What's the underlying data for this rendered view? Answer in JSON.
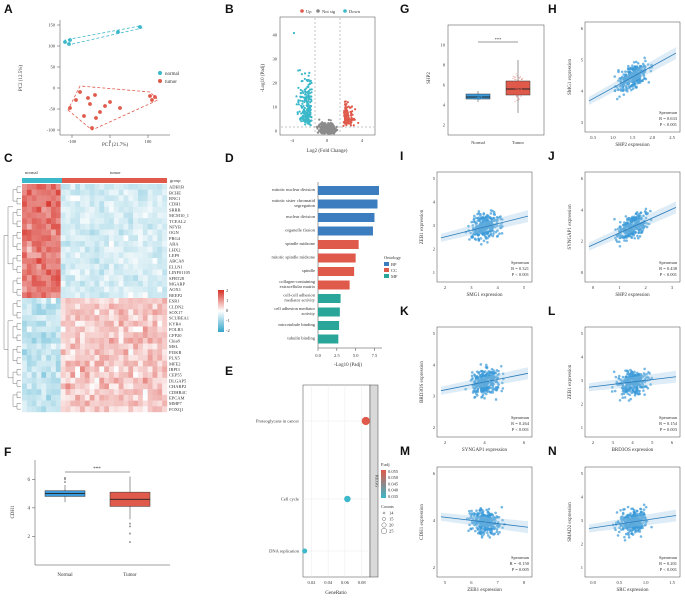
{
  "panel_labels": {
    "A": "A",
    "B": "B",
    "C": "C",
    "D": "D",
    "E": "E",
    "F": "F",
    "G": "G",
    "H": "H",
    "I": "I",
    "J": "J",
    "K": "K",
    "L": "L",
    "M": "M",
    "N": "N"
  },
  "panelA": {
    "xlabel": "PC1 (21.7%)",
    "ylabel": "PC2 (12.5%)",
    "legend": [
      "normal",
      "tumor"
    ],
    "xticks": [
      "-100",
      "0",
      "100"
    ],
    "yticks": [
      "150",
      "100",
      "50",
      "0",
      "-50",
      "-100"
    ],
    "colors": {
      "normal": "#3bb8c9",
      "tumor": "#e05a4b"
    }
  },
  "panelB": {
    "legend": [
      "Up",
      "Not sig",
      "Down"
    ],
    "xlabel": "Log2 (Fold Change)",
    "ylabel": "-Log10 (Padj)",
    "xticks": [
      "-4",
      "0",
      "4"
    ],
    "yticks": [
      "0",
      "10",
      "20",
      "30",
      "40"
    ]
  },
  "panelC": {
    "group_label": "group",
    "groups": [
      "normal",
      "tumor"
    ],
    "legend_ticks": [
      "2",
      "1",
      "0",
      "-1",
      "-2"
    ],
    "genes": [
      "ADH1B",
      "BCHE",
      "BNC1",
      "CDH1",
      "SRRB",
      "MCM10_1",
      "TCEAL2",
      "NFYB",
      "OGN",
      "PRG4",
      "ABA",
      "LHX2",
      "LEP9",
      "ABCA8",
      "ELLN1",
      "LINF01105",
      "SFRT28",
      "MGARP",
      "AOX1",
      "BEEP2",
      "ESR1",
      "CLDN2",
      "SOX17",
      "SCUBEA1",
      "KYR4",
      "FOLR3",
      "CFP20",
      "Chia8",
      "MSL",
      "PI3KR",
      "PLX5",
      "MFE2",
      "IRPI3",
      "CEP55",
      "DLGAP5",
      "CHARP2",
      "CDHR4C",
      "EPCAM",
      "MMP7",
      "FOXQ1"
    ]
  },
  "panelD": {
    "xlabel": "-Log10 (Padj)",
    "xticks": [
      "0.0",
      "2.5",
      "5.0",
      "7.5"
    ],
    "legend_title": "Ontology",
    "legend": [
      "BP",
      "CC",
      "MF"
    ]
  },
  "panelE": {
    "xlabel": "GeneRatio",
    "strip": "KEGG",
    "xticks": [
      "0.02",
      "0.04",
      "0.06",
      "0.08"
    ],
    "padj_title": "P.adj",
    "padj_ticks": [
      "0.055",
      "0.050",
      "0.045",
      "0.040",
      "0.035"
    ],
    "count_title": "Counts",
    "count_ticks": [
      "14",
      "15",
      "20",
      "25"
    ]
  },
  "panelF": {
    "ylabel": "CDH1",
    "groups": [
      "Normal",
      "Tumor"
    ],
    "yticks": [
      "6",
      "4",
      "2"
    ],
    "sig": "***"
  },
  "panelG": {
    "ylabel": "SHP2",
    "groups": [
      "Normal",
      "Tumor"
    ],
    "yticks": [
      "10",
      "8",
      "6",
      "4",
      "2"
    ],
    "sig": "***"
  },
  "scatter": {
    "H": {
      "xlabel": "SHP2 expression",
      "ylabel": "SMG1 expression",
      "method": "Spearman",
      "R": "R = 0.633",
      "P": "P < 0.001",
      "xticks": [
        "0.3",
        "1.0",
        "1.5",
        "2.0",
        "2.5"
      ],
      "yticks": [
        "3",
        "4",
        "5",
        "6"
      ]
    },
    "I": {
      "xlabel": "SMG1 expression",
      "ylabel": "ZEB1 expression",
      "method": "Spearman",
      "R": "R = 0.321",
      "P": "P < 0.001",
      "xticks": [
        "2",
        "3",
        "4",
        "5"
      ],
      "yticks": [
        "1",
        "2",
        "3",
        "4",
        "5"
      ]
    },
    "J": {
      "xlabel": "SHP2 expression",
      "ylabel": "SYNGAP1 expression",
      "method": "Spearman",
      "R": "R = 0.438",
      "P": "P < 0.001",
      "xticks": [
        "0",
        "1",
        "2",
        "3"
      ],
      "yticks": [
        "0",
        "2",
        "4",
        "6"
      ]
    },
    "K": {
      "xlabel": "SYNGAP1 expression",
      "ylabel": "BRD3OS expression",
      "method": "Spearman",
      "R": "R = 0.264",
      "P": "P < 0.001",
      "xticks": [
        "2",
        "4",
        "6"
      ],
      "yticks": [
        "2",
        "3",
        "4",
        "5"
      ]
    },
    "L": {
      "xlabel": "BRD3OS expression",
      "ylabel": "ZEB1 expression",
      "method": "Spearman",
      "R": "R = 0.154",
      "P": "P = 0.003",
      "xticks": [
        "2",
        "3",
        "4",
        "5",
        "6"
      ],
      "yticks": [
        "1",
        "2",
        "3",
        "4",
        "5"
      ]
    },
    "M": {
      "xlabel": "ZEB1 expression",
      "ylabel": "CDH1 expression",
      "method": "Spearman",
      "R": "R = -0.150",
      "P": "P = 0.005",
      "xticks": [
        "5",
        "6",
        "7",
        "8"
      ],
      "yticks": [
        "2",
        "4",
        "6"
      ]
    },
    "N": {
      "xlabel": "SRC expression",
      "ylabel": "SMAD2 expression",
      "method": "Spearman",
      "R": "R = 0.201",
      "P": "P < 0.001",
      "xticks": [
        "0.0",
        "0.5",
        "1.0",
        "1.5"
      ],
      "yticks": [
        "1",
        "2",
        "3",
        "4",
        "5"
      ]
    }
  },
  "chart_data": [
    {
      "panel": "D",
      "type": "bar",
      "orientation": "horizontal",
      "xlabel": "-Log10 (Padj)",
      "xlim": [
        0,
        8.5
      ],
      "categories": [
        "mitotic nuclear division",
        "mitotic sister chromatid segregation",
        "nuclear division",
        "organelle fission",
        "spindle midzone",
        "mitotic spindle midzone",
        "spindle",
        "collagen-containing extracellular matrix",
        "cell-cell adhesion mediator activity",
        "cell adhesion mediator activity",
        "microtubule binding",
        "tubulin binding"
      ],
      "values": [
        8.1,
        7.9,
        7.5,
        7.3,
        5.4,
        5.0,
        4.8,
        4.2,
        3.0,
        2.9,
        2.8,
        2.7
      ],
      "ontology": [
        "BP",
        "BP",
        "BP",
        "BP",
        "CC",
        "CC",
        "CC",
        "CC",
        "MF",
        "MF",
        "MF",
        "MF"
      ]
    },
    {
      "panel": "E",
      "type": "scatter",
      "xlabel": "GeneRatio",
      "xlim": [
        0.01,
        0.09
      ],
      "categories": [
        "Proteoglycans in cancer",
        "Cell cycle",
        "DNA replication"
      ],
      "x": [
        0.085,
        0.063,
        0.012
      ],
      "counts": [
        25,
        18,
        12
      ],
      "padj": [
        0.055,
        0.04,
        0.035
      ]
    },
    {
      "panel": "F",
      "type": "box",
      "ylabel": "CDH1",
      "groups": [
        "Normal",
        "Tumor"
      ],
      "median": [
        5.0,
        4.6
      ],
      "q1": [
        4.8,
        4.1
      ],
      "q3": [
        5.2,
        5.1
      ],
      "whisker_low": [
        4.4,
        3.2
      ],
      "whisker_high": [
        5.6,
        6.2
      ],
      "ylim": [
        0,
        7
      ]
    },
    {
      "panel": "G",
      "type": "box",
      "ylabel": "SHP2",
      "groups": [
        "Normal",
        "Tumor"
      ],
      "median": [
        4.8,
        5.6
      ],
      "q1": [
        4.6,
        5.0
      ],
      "q3": [
        5.1,
        6.4
      ],
      "whisker_low": [
        4.3,
        3.2
      ],
      "whisker_high": [
        5.4,
        8.5
      ],
      "ylim": [
        1,
        12
      ]
    }
  ]
}
